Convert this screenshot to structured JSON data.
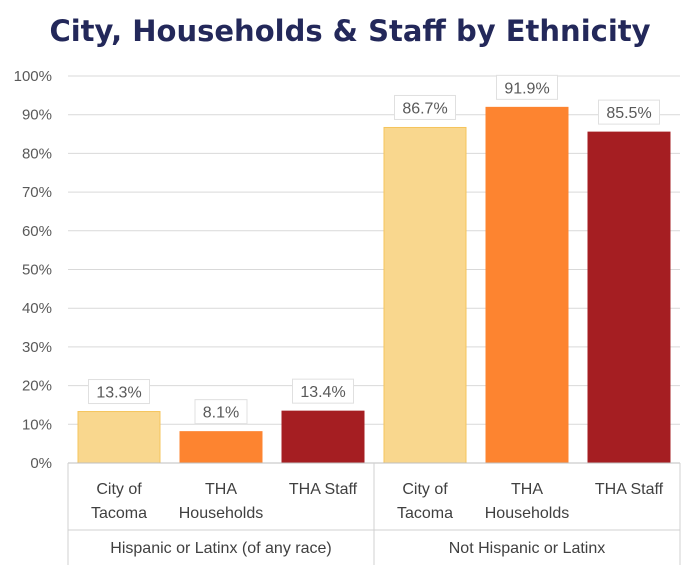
{
  "chart_data": {
    "type": "bar",
    "title": "City, Households & Staff by Ethnicity",
    "xlabel": "",
    "ylabel": "",
    "ylim": [
      0,
      100
    ],
    "y_ticks": [
      "0%",
      "10%",
      "20%",
      "30%",
      "40%",
      "50%",
      "60%",
      "70%",
      "80%",
      "90%",
      "100%"
    ],
    "grid": true,
    "legend": "none",
    "groups": [
      {
        "label": "Hispanic or Latinx (of any race)",
        "bars": [
          {
            "category": [
              "City of",
              "Tacoma"
            ],
            "value": 13.3,
            "label": "13.3%",
            "color": "#f9d78e"
          },
          {
            "category": [
              "THA",
              "Households"
            ],
            "value": 8.1,
            "label": "8.1%",
            "color": "#fd8430"
          },
          {
            "category": [
              "THA Staff"
            ],
            "value": 13.4,
            "label": "13.4%",
            "color": "#a51e22"
          }
        ]
      },
      {
        "label": "Not Hispanic or Latinx",
        "bars": [
          {
            "category": [
              "City of",
              "Tacoma"
            ],
            "value": 86.7,
            "label": "86.7%",
            "color": "#f9d78e"
          },
          {
            "category": [
              "THA",
              "Households"
            ],
            "value": 91.9,
            "label": "91.9%",
            "color": "#fd8430"
          },
          {
            "category": [
              "THA Staff"
            ],
            "value": 85.5,
            "label": "85.5%",
            "color": "#a51e22"
          }
        ]
      }
    ]
  }
}
